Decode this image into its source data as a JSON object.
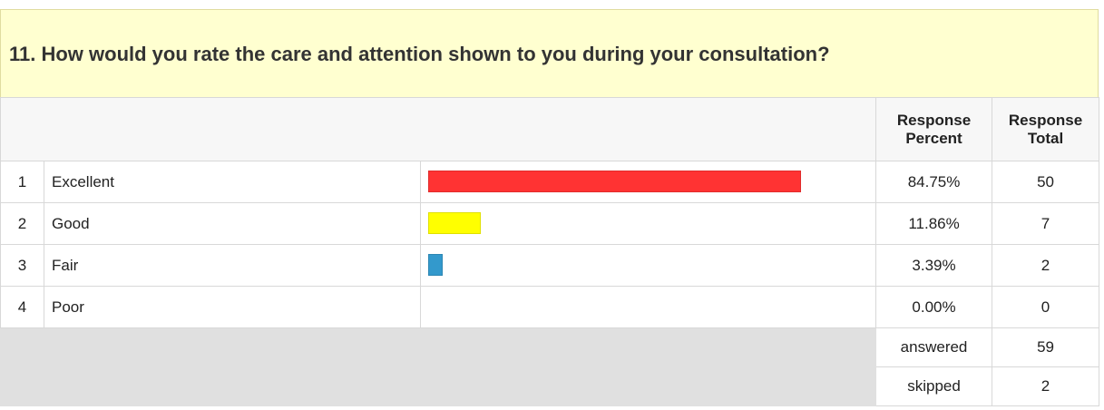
{
  "chart_data": {
    "type": "bar",
    "title": "11. How would you rate the care and attention shown to you during your consultation?",
    "headers": [
      "Response Percent",
      "Response Total"
    ],
    "index": [
      "1",
      "2",
      "3",
      "4"
    ],
    "categories": [
      "Excellent",
      "Good",
      "Fair",
      "Poor"
    ],
    "values": [
      84.75,
      11.86,
      3.39,
      0
    ],
    "value_labels": [
      "84.75%",
      "11.86%",
      "3.39%",
      "0.00%"
    ],
    "colors": [
      "#ff3333",
      "#ffff00",
      "#3399cc",
      "#999999"
    ],
    "totals": [
      50,
      7,
      2,
      0
    ],
    "summary": [
      {
        "label": "answered",
        "value": 59
      },
      {
        "label": "skipped",
        "value": 2
      }
    ]
  }
}
